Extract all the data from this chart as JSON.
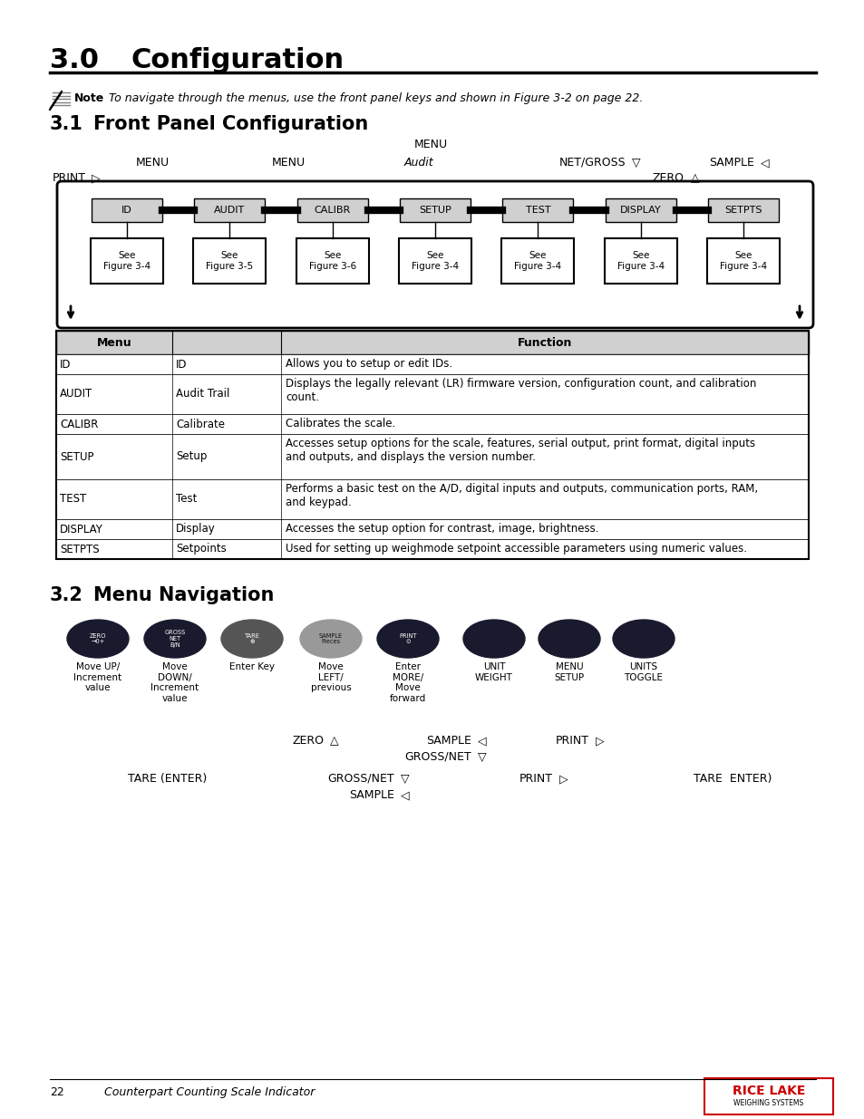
{
  "title_num": "3.0",
  "title_text": "Configuration",
  "note_text": "To navigate through the menus, use the front panel keys and shown in Figure 3-2 on page 22.",
  "sec31_num": "3.1",
  "sec31_text": "Front Panel Configuration",
  "sec32_num": "3.2",
  "sec32_text": "Menu Navigation",
  "menu_items": [
    "ID",
    "AUDIT",
    "CALIBR",
    "SETUP",
    "TEST",
    "DISPLAY",
    "SETPTS"
  ],
  "sub_items": [
    "See\nFigure 3-4",
    "See\nFigure 3-5",
    "See\nFigure 3-6",
    "See\nFigure 3-4",
    "See\nFigure 3-4",
    "See\nFigure 3-4",
    "See\nFigure 3-4"
  ],
  "table_col1": [
    "ID",
    "AUDIT",
    "CALIBR",
    "SETUP",
    "TEST",
    "DISPLAY",
    "SETPTS"
  ],
  "table_col2": [
    "ID",
    "Audit Trail",
    "Calibrate",
    "Setup",
    "Test",
    "Display",
    "Setpoints"
  ],
  "table_col3": [
    "Allows you to setup or edit IDs.",
    "Displays the legally relevant (LR) firmware version, configuration count, and calibration\ncount.",
    "Calibrates the scale.",
    "Accesses setup options for the scale, features, serial output, print format, digital inputs\nand outputs, and displays the version number.",
    "Performs a basic test on the A/D, digital inputs and outputs, communication ports, RAM,\nand keypad.",
    "Accesses the setup option for contrast, image, brightness.",
    "Used for setting up weighmode setpoint accessible parameters using numeric values."
  ],
  "btn_below": [
    "Move UP/\nIncrement\nvalue",
    "Move\nDOWN/\nIncrement\nvalue",
    "Enter Key",
    "Move\nLEFT/\nprevious",
    "Enter\nMORE/\nMove\nforward",
    "UNIT\nWEIGHT",
    "MENU\nSETUP",
    "UNITS\nTOGGLE"
  ],
  "page_number": "22",
  "page_footer": "Counterpart Counting Scale Indicator",
  "bg_color": "#ffffff",
  "header_bg": "#d0d0d0"
}
